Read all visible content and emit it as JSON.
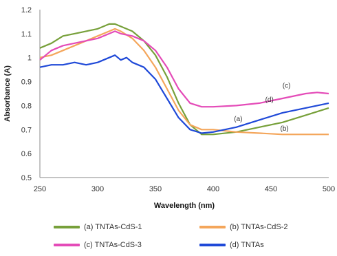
{
  "chart_data": {
    "type": "line",
    "title": "",
    "xlabel": "Wavelength (nm)",
    "ylabel": "Absorbance (A)",
    "xlim": [
      250,
      500
    ],
    "ylim": [
      0.5,
      1.2
    ],
    "xticks": [
      "250",
      "300",
      "350",
      "400",
      "450",
      "500"
    ],
    "yticks": [
      "0.5",
      "0.6",
      "0.7",
      "0.8",
      "0.9",
      "1",
      "1.1",
      "1.2"
    ],
    "grid": false,
    "legend_position": "bottom",
    "series": [
      {
        "name": "(a) TNTAs-CdS-1",
        "color": "#77A03A",
        "callout": "(a)",
        "x": [
          250,
          260,
          270,
          280,
          290,
          300,
          305,
          310,
          315,
          320,
          325,
          330,
          340,
          350,
          360,
          370,
          380,
          390,
          400,
          420,
          440,
          460,
          480,
          500
        ],
        "y": [
          1.04,
          1.06,
          1.09,
          1.1,
          1.11,
          1.12,
          1.13,
          1.14,
          1.14,
          1.13,
          1.12,
          1.11,
          1.07,
          1.01,
          0.92,
          0.81,
          0.72,
          0.68,
          0.68,
          0.69,
          0.71,
          0.73,
          0.76,
          0.79
        ]
      },
      {
        "name": "(b) TNTAs-CdS-2",
        "color": "#F4A65B",
        "callout": "(b)",
        "x": [
          250,
          260,
          270,
          280,
          290,
          300,
          310,
          315,
          320,
          330,
          340,
          350,
          360,
          370,
          380,
          390,
          400,
          420,
          440,
          460,
          480,
          500
        ],
        "y": [
          1.0,
          1.01,
          1.03,
          1.05,
          1.07,
          1.09,
          1.11,
          1.12,
          1.11,
          1.08,
          1.03,
          0.96,
          0.87,
          0.78,
          0.72,
          0.7,
          0.7,
          0.69,
          0.685,
          0.68,
          0.68,
          0.68
        ]
      },
      {
        "name": "(c) TNTAs-CdS-3",
        "color": "#E44BB8",
        "callout": "(c)",
        "x": [
          250,
          260,
          270,
          280,
          290,
          300,
          310,
          315,
          320,
          330,
          340,
          350,
          360,
          370,
          380,
          390,
          400,
          420,
          440,
          460,
          480,
          490,
          500
        ],
        "y": [
          0.99,
          1.03,
          1.05,
          1.06,
          1.07,
          1.08,
          1.1,
          1.11,
          1.1,
          1.09,
          1.07,
          1.03,
          0.96,
          0.87,
          0.81,
          0.795,
          0.795,
          0.8,
          0.81,
          0.83,
          0.85,
          0.855,
          0.85
        ]
      },
      {
        "name": "(d) TNTAs",
        "color": "#1F49D8",
        "callout": "(d)",
        "x": [
          250,
          260,
          270,
          280,
          290,
          300,
          305,
          310,
          315,
          320,
          325,
          330,
          335,
          340,
          350,
          360,
          370,
          380,
          390,
          400,
          420,
          440,
          460,
          480,
          500
        ],
        "y": [
          0.96,
          0.97,
          0.97,
          0.98,
          0.97,
          0.98,
          0.99,
          1.0,
          1.01,
          0.99,
          1.0,
          0.98,
          0.97,
          0.96,
          0.91,
          0.83,
          0.75,
          0.7,
          0.685,
          0.69,
          0.71,
          0.74,
          0.77,
          0.79,
          0.81
        ]
      }
    ]
  }
}
